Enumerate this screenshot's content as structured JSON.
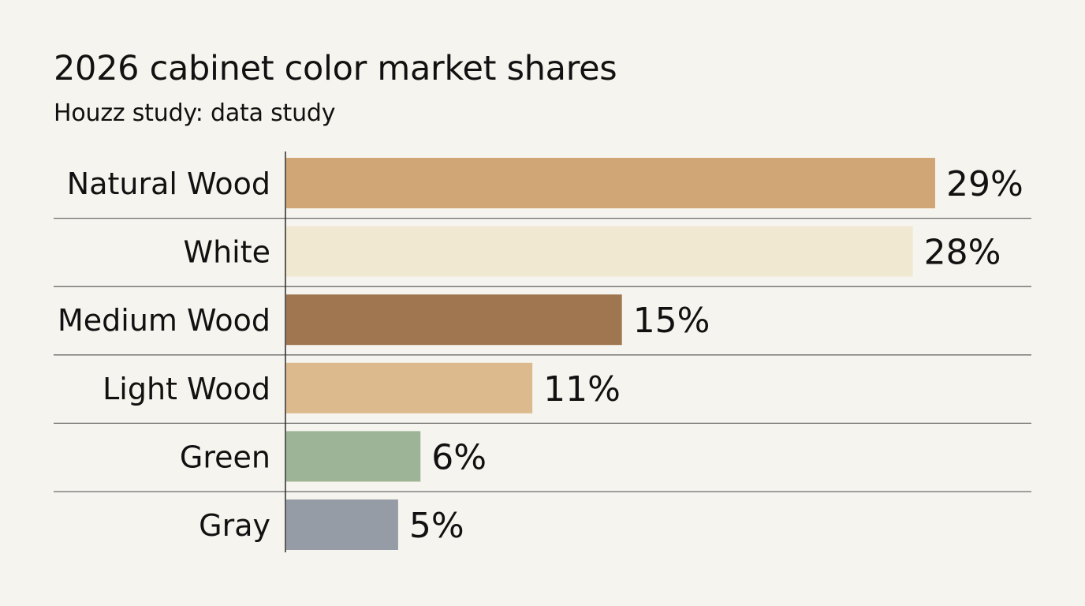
{
  "header": {
    "title": "2026 cabinet color market shares",
    "subtitle": "Houzz study: data study"
  },
  "chart_data": {
    "type": "bar",
    "orientation": "horizontal",
    "title": "2026 cabinet color market shares",
    "subtitle": "Houzz study: data study",
    "xlabel": "",
    "ylabel": "",
    "categories": [
      "Natural Wood",
      "White",
      "Medium Wood",
      "Light Wood",
      "Green",
      "Gray"
    ],
    "values": [
      29,
      28,
      15,
      11,
      6,
      5
    ],
    "value_labels": [
      "29%",
      "28%",
      "15%",
      "11%",
      "6%",
      "5%"
    ],
    "unit": "%",
    "bar_colors": [
      "#d1a676",
      "#f1e8d2",
      "#9f7650",
      "#ddba8d",
      "#9db496",
      "#959ca6"
    ],
    "xlim": [
      0,
      29
    ],
    "grid": false,
    "legend": "none"
  }
}
